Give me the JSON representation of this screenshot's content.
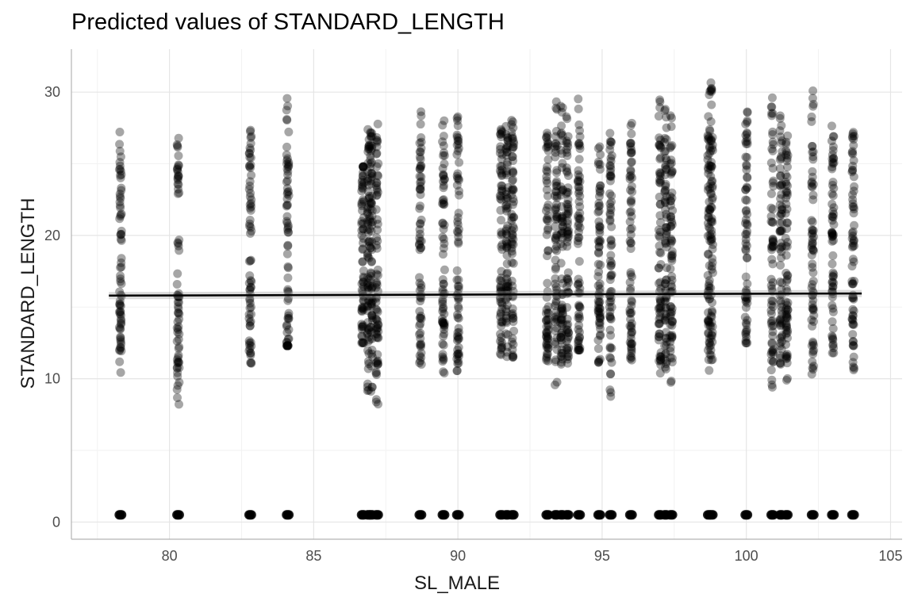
{
  "chart_data": {
    "type": "scatter",
    "title": "Predicted values of STANDARD_LENGTH",
    "xlabel": "SL_MALE",
    "ylabel": "STANDARD_LENGTH",
    "xlim": [
      76.6,
      105.4
    ],
    "ylim": [
      -1.2,
      33.0
    ],
    "x_ticks": [
      80,
      85,
      90,
      95,
      100,
      105
    ],
    "y_ticks": [
      0,
      10,
      20,
      30
    ],
    "grid": true,
    "legend": "none",
    "point_color": "#000000",
    "point_opacity": 0.35,
    "line_color": "#000000",
    "x_groups": [
      78.3,
      80.3,
      82.8,
      84.1,
      86.7,
      86.9,
      87.0,
      87.2,
      88.7,
      89.5,
      90.0,
      91.5,
      91.7,
      91.9,
      93.1,
      93.4,
      93.6,
      93.8,
      94.2,
      94.9,
      95.3,
      96.0,
      97.0,
      97.2,
      97.4,
      98.7,
      98.8,
      100.0,
      100.9,
      101.2,
      101.4,
      102.3,
      103.0,
      103.7
    ],
    "group_ranges": [
      [
        10.3,
        27.5
      ],
      [
        7.7,
        27.7
      ],
      [
        9.6,
        28.0
      ],
      [
        12.3,
        31.0
      ],
      [
        12.5,
        24.8
      ],
      [
        8.3,
        28.1
      ],
      [
        8.8,
        28.2
      ],
      [
        8.2,
        28.5
      ],
      [
        10.2,
        28.9
      ],
      [
        8.8,
        28.5
      ],
      [
        10.5,
        28.9
      ],
      [
        10.8,
        27.8
      ],
      [
        11.2,
        28.2
      ],
      [
        11.5,
        28.5
      ],
      [
        9.8,
        27.9
      ],
      [
        8.6,
        30.1
      ],
      [
        9.5,
        29.1
      ],
      [
        10.4,
        28.6
      ],
      [
        12.0,
        30.0
      ],
      [
        10.8,
        28.1
      ],
      [
        8.7,
        27.6
      ],
      [
        11.3,
        28.1
      ],
      [
        9.5,
        29.9
      ],
      [
        10.0,
        29.5
      ],
      [
        8.9,
        29.8
      ],
      [
        10.5,
        31.3
      ],
      [
        11.0,
        31.0
      ],
      [
        12.5,
        29.0
      ],
      [
        9.2,
        29.8
      ],
      [
        9.8,
        29.0
      ],
      [
        8.2,
        27.9
      ],
      [
        9.6,
        31.7
      ],
      [
        11.8,
        28.0
      ],
      [
        9.7,
        28.6
      ]
    ],
    "zero_cluster_y": 0.5,
    "fit_line": {
      "x": [
        77.9,
        104.0
      ],
      "y": [
        15.8,
        15.95
      ]
    }
  }
}
